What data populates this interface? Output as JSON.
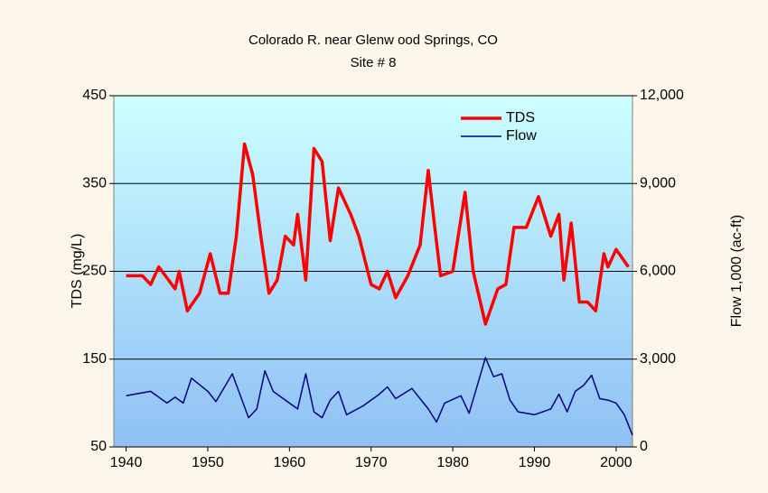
{
  "chart_data": {
    "type": "line",
    "title": "Colorado R. near Glenw ood Springs,  CO",
    "subtitle": "Site # 8",
    "y_label": "TDS (mg/L)",
    "y2_label": "Flow 1,000 (ac-ft)",
    "xlim": [
      1938.5,
      2002
    ],
    "xticks": [
      1940,
      1950,
      1960,
      1970,
      1980,
      1990,
      2000
    ],
    "ylim": [
      50,
      450
    ],
    "yticks": [
      50,
      150,
      250,
      350,
      450
    ],
    "y2lim": [
      0,
      12000
    ],
    "y2ticks": [
      0,
      {
        "value": 3000,
        "label": "3,000"
      },
      {
        "value": 6000,
        "label": "6,000"
      },
      {
        "value": 9000,
        "label": "9,000"
      },
      {
        "value": 12000,
        "label": "12,000"
      }
    ],
    "grid": true,
    "legend": "upper right",
    "series": [
      {
        "name": "TDS",
        "color": "#ff0000",
        "x": [
          1940,
          1942,
          1943,
          1944,
          1946,
          1946.5,
          1947.5,
          1949,
          1950.3,
          1951.5,
          1952.5,
          1953.5,
          1954.5,
          1955.5,
          1956.5,
          1957.5,
          1958.5,
          1959.5,
          1960.5,
          1961,
          1962,
          1963,
          1964,
          1965,
          1966,
          1967.5,
          1968.5,
          1970,
          1971,
          1972,
          1973,
          1974.5,
          1976,
          1977,
          1977.8,
          1978.5,
          1980,
          1981.5,
          1982.5,
          1984,
          1985.5,
          1986.5,
          1987.5,
          1989,
          1990.5,
          1992,
          1993,
          1993.6,
          1994.5,
          1995.5,
          1996.5,
          1997.5,
          1998.5,
          1999,
          2000,
          2001.5
        ],
        "values": [
          245,
          245,
          235,
          255,
          230,
          250,
          205,
          225,
          270,
          225,
          225,
          290,
          395,
          360,
          290,
          225,
          240,
          290,
          280,
          315,
          240,
          390,
          375,
          285,
          345,
          315,
          290,
          235,
          230,
          250,
          220,
          245,
          280,
          365,
          300,
          245,
          250,
          340,
          250,
          190,
          230,
          235,
          300,
          300,
          335,
          290,
          315,
          240,
          305,
          215,
          215,
          205,
          270,
          255,
          275,
          255
        ]
      },
      {
        "name": "Flow",
        "color": "#000080",
        "axis": "y2",
        "x": [
          1940,
          1943,
          1945,
          1946,
          1947,
          1948,
          1950,
          1951,
          1953,
          1955,
          1956,
          1957,
          1958,
          1960,
          1961,
          1962,
          1963,
          1964,
          1965,
          1966,
          1967,
          1969,
          1971,
          1972,
          1973,
          1975,
          1977,
          1978,
          1979,
          1981,
          1982,
          1984,
          1985,
          1986,
          1987,
          1988,
          1990,
          1992,
          1993,
          1994,
          1995,
          1996,
          1997,
          1998,
          1999,
          2000,
          2001,
          2002
        ],
        "values": [
          1750,
          1900,
          1500,
          1700,
          1500,
          2350,
          1900,
          1550,
          2500,
          1000,
          1300,
          2600,
          1900,
          1500,
          1300,
          2500,
          1200,
          1000,
          1600,
          1900,
          1100,
          1400,
          1800,
          2050,
          1650,
          2000,
          1300,
          850,
          1500,
          1750,
          1150,
          3050,
          2400,
          2500,
          1600,
          1200,
          1100,
          1300,
          1800,
          1200,
          1900,
          2100,
          2450,
          1650,
          1600,
          1500,
          1100,
          400
        ]
      }
    ]
  }
}
